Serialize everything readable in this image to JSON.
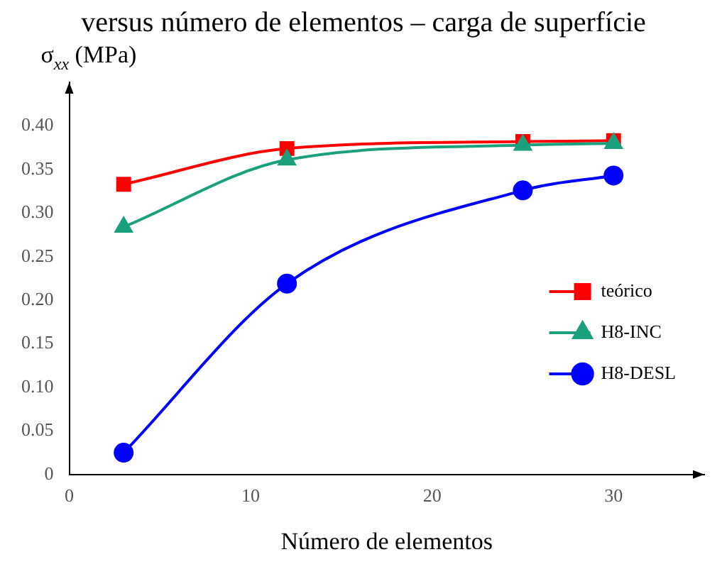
{
  "chart_data": {
    "type": "line",
    "title": "versus número de elementos – carga de superfície",
    "xlabel": "Número de elementos",
    "ylabel": "σ$_{xx}$ (MPa)",
    "x": [
      3,
      12,
      25,
      30
    ],
    "series": [
      {
        "name": "teórico",
        "color": "#ff0000",
        "values": [
          0.333,
          0.374,
          0.382,
          0.383
        ],
        "marker": "square"
      },
      {
        "name": "H8-INC",
        "color": "#1ba07e",
        "values": [
          0.284,
          0.361,
          0.378,
          0.38
        ],
        "marker": "triangle"
      },
      {
        "name": "H8-DESL",
        "color": "#0000ff",
        "values": [
          0.025,
          0.219,
          0.326,
          0.343
        ],
        "marker": "circle"
      }
    ],
    "xlim": [
      0,
      35
    ],
    "xticks": [
      0,
      10,
      20,
      30
    ],
    "ylim": [
      0,
      0.45
    ],
    "yticks": [
      {
        "value": 0,
        "label": "0"
      },
      {
        "value": 0.05,
        "label": "0.05"
      },
      {
        "value": 0.1,
        "label": "0.10"
      },
      {
        "value": 0.15,
        "label": "0.15"
      },
      {
        "value": 0.2,
        "label": "0.20"
      },
      {
        "value": 0.25,
        "label": "0.25"
      },
      {
        "value": 0.3,
        "label": "0.30"
      },
      {
        "value": 0.35,
        "label": "0.35"
      },
      {
        "value": 0.4,
        "label": "0.40"
      }
    ],
    "grid": false,
    "legend": "right",
    "line_style": "solid"
  }
}
